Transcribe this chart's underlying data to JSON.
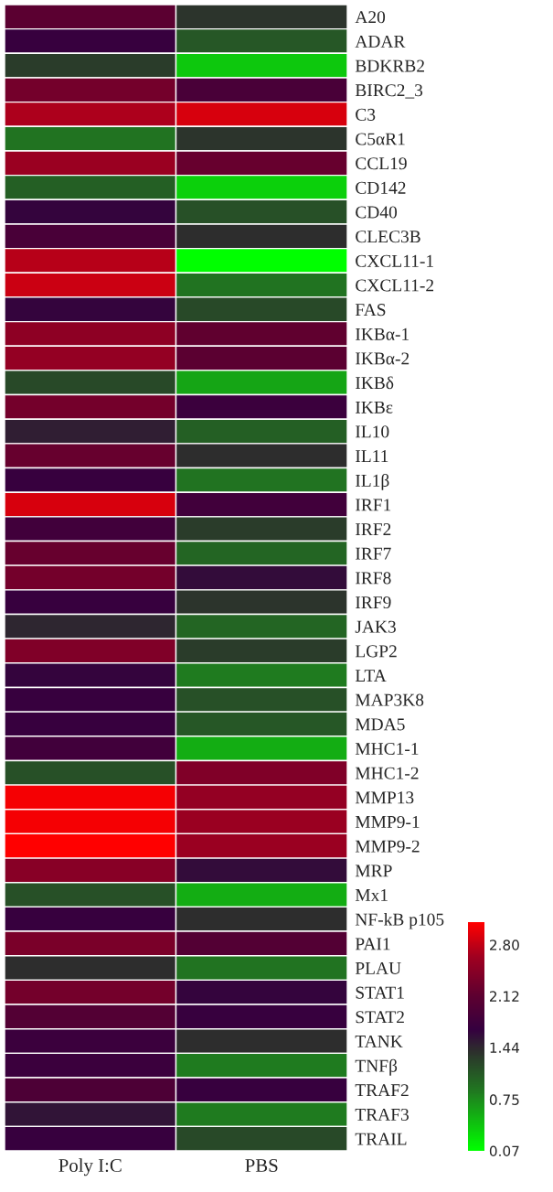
{
  "chart_data": {
    "type": "heatmap",
    "categories": [
      "Poly I:C",
      "PBS"
    ],
    "y_categories": [
      "A20",
      "ADAR",
      "BDKRB2",
      "BIRC2_3",
      "C3",
      "C5αR1",
      "CCL19",
      "CD142",
      "CD40",
      "CLEC3B",
      "CXCL11-1",
      "CXCL11-2",
      "FAS",
      "IKBα-1",
      "IKBα-2",
      "IKBδ",
      "IKBε",
      "IL10",
      "IL11",
      "IL1β",
      "IRF1",
      "IRF2",
      "IRF7",
      "IRF8",
      "IRF9",
      "JAK3",
      "LGP2",
      "LTA",
      "MAP3K8",
      "MDA5",
      "MHC1-1",
      "MHC1-2",
      "MMP13",
      "MMP9-1",
      "MMP9-2",
      "MRP",
      "Mx1",
      "NF-kB p105",
      "PAI1",
      "PLAU",
      "STAT1",
      "STAT2",
      "TANK",
      "TNFβ",
      "TRAF2",
      "TRAF3",
      "TRAIL"
    ],
    "cells": [
      [
        2.1,
        1.35
      ],
      [
        1.7,
        1.1
      ],
      [
        1.3,
        0.4
      ],
      [
        2.3,
        1.9
      ],
      [
        2.7,
        2.9
      ],
      [
        0.9,
        1.35
      ],
      [
        2.6,
        2.2
      ],
      [
        1.05,
        0.35
      ],
      [
        1.65,
        1.15
      ],
      [
        1.9,
        1.4
      ],
      [
        2.75,
        0.07
      ],
      [
        2.85,
        0.9
      ],
      [
        1.65,
        1.2
      ],
      [
        2.5,
        2.15
      ],
      [
        2.55,
        2.1
      ],
      [
        1.2,
        0.6
      ],
      [
        2.3,
        1.75
      ],
      [
        1.5,
        1.05
      ],
      [
        2.2,
        1.4
      ],
      [
        1.7,
        0.9
      ],
      [
        2.9,
        1.8
      ],
      [
        1.8,
        1.3
      ],
      [
        2.2,
        1.0
      ],
      [
        2.3,
        1.6
      ],
      [
        1.7,
        1.35
      ],
      [
        1.45,
        1.0
      ],
      [
        2.4,
        1.3
      ],
      [
        1.65,
        0.85
      ],
      [
        1.7,
        1.15
      ],
      [
        1.7,
        1.1
      ],
      [
        1.8,
        0.55
      ],
      [
        1.15,
        2.4
      ],
      [
        3.05,
        2.55
      ],
      [
        3.05,
        2.6
      ],
      [
        3.1,
        2.6
      ],
      [
        2.45,
        1.6
      ],
      [
        1.15,
        0.55
      ],
      [
        1.7,
        1.4
      ],
      [
        2.35,
        2.0
      ],
      [
        1.4,
        0.9
      ],
      [
        2.3,
        1.65
      ],
      [
        2.0,
        1.7
      ],
      [
        1.75,
        1.4
      ],
      [
        1.75,
        0.85
      ],
      [
        1.95,
        1.7
      ],
      [
        1.55,
        0.85
      ],
      [
        1.7,
        1.2
      ]
    ],
    "clim": [
      0.07,
      3.1
    ],
    "cticks": [
      0.07,
      0.75,
      1.44,
      2.12,
      {
        "value": 2.8,
        "label": "2.80"
      }
    ]
  }
}
